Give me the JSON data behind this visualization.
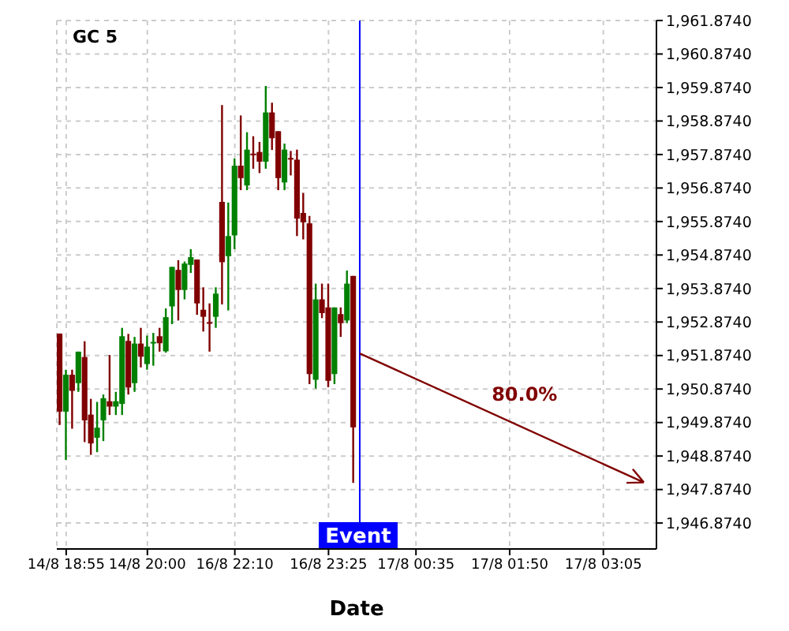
{
  "chart_data": {
    "type": "candlestick",
    "title": "GC 5",
    "xlabel": "Date",
    "categories": [
      null,
      "14/8 18:55",
      null,
      null,
      null,
      null,
      null,
      null,
      null,
      null,
      null,
      null,
      null,
      null,
      "14/8 20:00",
      null,
      null,
      null,
      null,
      null,
      null,
      null,
      null,
      null,
      null,
      null,
      null,
      null,
      "16/8 22:10",
      null,
      null,
      null,
      null,
      null,
      null,
      null,
      null,
      null,
      null,
      null,
      null,
      null,
      null,
      "16/8 23:25",
      null,
      null,
      null,
      null,
      null,
      null,
      null,
      null,
      null,
      null,
      null,
      null,
      null,
      "17/8 00:35",
      null,
      null,
      null,
      null,
      null,
      null,
      null,
      null,
      null,
      null,
      null,
      null,
      null,
      null,
      "17/8 01:50",
      null,
      null,
      null,
      null,
      null,
      null,
      null,
      null,
      null,
      null,
      null,
      null,
      null,
      null,
      "17/8 03:05",
      null,
      null,
      null,
      null,
      null,
      null,
      null,
      null
    ],
    "ohlc": [
      [
        1952.53,
        1952.53,
        1949.8,
        1950.2
      ],
      [
        1950.2,
        1951.45,
        1948.76,
        1951.3
      ],
      [
        1951.3,
        1951.45,
        1949.69,
        1950.82
      ],
      [
        1951.05,
        1951.99,
        1950.79,
        1951.99
      ],
      [
        1951.83,
        1952.3,
        1949.29,
        1949.94
      ],
      [
        1950.11,
        1950.58,
        1948.91,
        1949.25
      ],
      [
        1949.42,
        1950.49,
        1948.99,
        1949.72
      ],
      [
        1949.94,
        1950.71,
        1949.32,
        1950.6
      ],
      [
        1950.51,
        1951.89,
        1950.1,
        1950.35
      ],
      [
        1950.35,
        1950.79,
        1950.1,
        1950.51
      ],
      [
        1950.43,
        1952.7,
        1950.1,
        1952.45
      ],
      [
        1952.31,
        1952.52,
        1950.71,
        1950.92
      ],
      [
        1951.05,
        1952.43,
        1950.79,
        1952.23
      ],
      [
        1952.23,
        1952.7,
        1951.52,
        1951.84
      ],
      [
        1951.62,
        1952.47,
        1951.45,
        1952.14
      ],
      [
        1952.25,
        1952.55,
        1951.57,
        1952.28
      ],
      [
        1952.45,
        1952.7,
        1951.99,
        1952.24
      ],
      [
        1952.0,
        1953.28,
        1951.96,
        1953.02
      ],
      [
        1953.34,
        1954.52,
        1952.81,
        1954.52
      ],
      [
        1954.43,
        1954.72,
        1952.92,
        1953.83
      ],
      [
        1953.83,
        1954.68,
        1953.55,
        1954.62
      ],
      [
        1954.58,
        1955.05,
        1954.34,
        1954.81
      ],
      [
        1954.74,
        1954.74,
        1953.09,
        1953.43
      ],
      [
        1953.24,
        1953.91,
        1952.59,
        1953.03
      ],
      [
        1952.87,
        1953.43,
        1951.99,
        1952.86
      ],
      [
        1953.03,
        1953.91,
        1952.7,
        1953.72
      ],
      [
        1956.46,
        1959.35,
        1953.4,
        1954.66
      ],
      [
        1954.84,
        1956.44,
        1953.22,
        1955.44
      ],
      [
        1955.46,
        1957.76,
        1955.05,
        1957.54
      ],
      [
        1957.54,
        1959.04,
        1956.81,
        1957.17
      ],
      [
        1956.95,
        1958.54,
        1956.81,
        1958.02
      ],
      [
        1957.9,
        1958.42,
        1957.45,
        1957.88
      ],
      [
        1957.95,
        1958.25,
        1957.32,
        1957.66
      ],
      [
        1957.66,
        1959.92,
        1957.45,
        1959.13
      ],
      [
        1959.13,
        1959.42,
        1958.01,
        1958.36
      ],
      [
        1958.57,
        1958.57,
        1956.81,
        1957.17
      ],
      [
        1957.04,
        1958.2,
        1956.81,
        1958.02
      ],
      [
        1957.77,
        1957.98,
        1957.25,
        1957.75
      ],
      [
        1957.72,
        1958.02,
        1955.44,
        1955.96
      ],
      [
        1956.13,
        1956.73,
        1955.34,
        1955.85
      ],
      [
        1955.82,
        1956.04,
        1951.02,
        1951.32
      ],
      [
        1951.15,
        1954.02,
        1950.89,
        1953.55
      ],
      [
        1953.55,
        1954.02,
        1952.99,
        1953.14
      ],
      [
        1953.31,
        1954.02,
        1950.93,
        1951.12
      ],
      [
        1951.32,
        1953.31,
        1951.02,
        1953.31
      ],
      [
        1953.11,
        1953.31,
        1952.43,
        1952.84
      ],
      [
        1952.92,
        1954.41,
        1952.84,
        1954.02
      ],
      [
        1954.25,
        1954.25,
        1948.07,
        1949.73
      ],
      null,
      null,
      null,
      null,
      null,
      null,
      null,
      null,
      null,
      null,
      null,
      null,
      null,
      null,
      null,
      null,
      null,
      null,
      null,
      null,
      null,
      null,
      null,
      null,
      null,
      null,
      null,
      null,
      null,
      null,
      null,
      null,
      null,
      null,
      null,
      null,
      null,
      null,
      null,
      null,
      null,
      null,
      null,
      null,
      null,
      null,
      null,
      null
    ],
    "colors": [
      "#800000",
      "#008000",
      "#800000",
      "#008000",
      "#800000",
      "#800000",
      "#008000",
      "#008000",
      "#800000",
      "#008000",
      "#008000",
      "#800000",
      "#008000",
      "#800000",
      "#008000",
      "#008000",
      "#800000",
      "#008000",
      "#008000",
      "#800000",
      "#008000",
      "#008000",
      "#800000",
      "#800000",
      "#800000",
      "#008000",
      "#800000",
      "#008000",
      "#008000",
      "#800000",
      "#008000",
      "#800000",
      "#800000",
      "#008000",
      "#800000",
      "#800000",
      "#008000",
      "#800000",
      "#800000",
      "#800000",
      "#800000",
      "#008000",
      "#800000",
      "#800000",
      "#008000",
      "#800000",
      "#008000",
      "#800000",
      null,
      null,
      null,
      null,
      null,
      null,
      null,
      null,
      null,
      null,
      null,
      null,
      null,
      null,
      null,
      null,
      null,
      null,
      null,
      null,
      null,
      null,
      null,
      null,
      null,
      null,
      null,
      null,
      null,
      null,
      null,
      null,
      null,
      null,
      null,
      null,
      null,
      null,
      null,
      null,
      null,
      null,
      null,
      null,
      null,
      null,
      null,
      null
    ],
    "ref_lines": [
      {
        "axis": "x",
        "label": "Event",
        "color": "#0000ff"
      }
    ],
    "annotations": [
      "80.0%"
    ],
    "ylim": [
      1946.1,
      1961.874
    ],
    "yticks": [
      {
        "value": 1946.874,
        "label": "1,946.8740"
      },
      {
        "value": 1947.874,
        "label": "1,947.8740"
      },
      {
        "value": 1948.874,
        "label": "1,948.8740"
      },
      {
        "value": 1949.874,
        "label": "1,949.8740"
      },
      {
        "value": 1950.874,
        "label": "1,950.8740"
      },
      {
        "value": 1951.874,
        "label": "1,951.8740"
      },
      {
        "value": 1952.874,
        "label": "1,952.8740"
      },
      {
        "value": 1953.874,
        "label": "1,953.8740"
      },
      {
        "value": 1954.874,
        "label": "1,954.8740"
      },
      {
        "value": 1955.874,
        "label": "1,955.8740"
      },
      {
        "value": 1956.874,
        "label": "1,956.8740"
      },
      {
        "value": 1957.874,
        "label": "1,957.8740"
      },
      {
        "value": 1958.874,
        "label": "1,958.8740"
      },
      {
        "value": 1959.874,
        "label": "1,959.8740"
      },
      {
        "value": 1960.874,
        "label": "1,960.8740"
      },
      {
        "value": 1961.874,
        "label": "1,961.8740"
      }
    ],
    "grid": true
  }
}
